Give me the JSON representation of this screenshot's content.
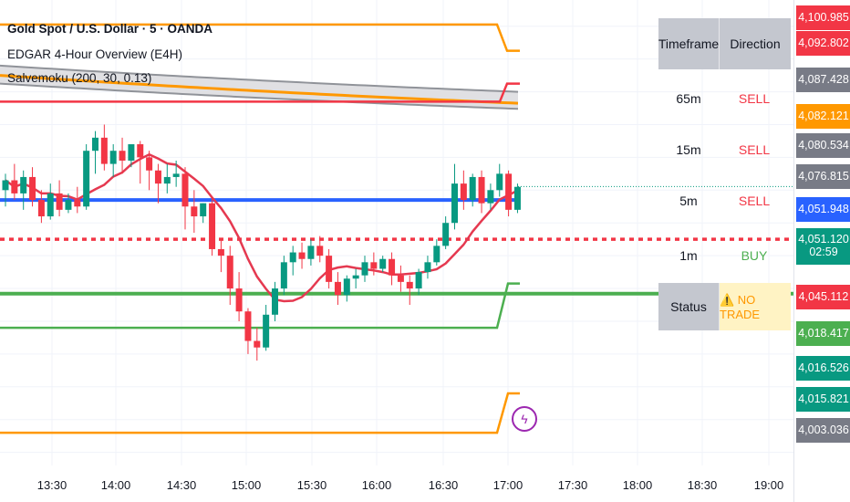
{
  "legend": {
    "title": "Gold Spot / U.S. Dollar · 5 · OANDA",
    "indicator1": "EDGAR 4-Hour Overview (E4H)",
    "indicator2": "Salvemoku  (200, 30, 0.13)"
  },
  "table": {
    "header_timeframe": "Timeframe",
    "header_direction": "Direction",
    "rows": [
      {
        "tf": "65m",
        "dir": "SELL",
        "color": "#f23645"
      },
      {
        "tf": "15m",
        "dir": "SELL",
        "color": "#f23645"
      },
      {
        "tf": "5m",
        "dir": "SELL",
        "color": "#f23645"
      },
      {
        "tf": "1m",
        "dir": "BUY",
        "color": "#4caf50"
      }
    ],
    "status_label": "Status",
    "status_value": "⚠️ NO TRADE"
  },
  "price_scale": [
    {
      "label": "4,100.985",
      "color": "#f23645"
    },
    {
      "label": "4,092.802",
      "color": "#f23645"
    },
    {
      "label": "4,087.428",
      "color": "#787b86"
    },
    {
      "label": "4,082.121",
      "color": "#ff9800"
    },
    {
      "label": "4,080.534",
      "color": "#787b86"
    },
    {
      "label": "4,076.815",
      "color": "#787b86"
    },
    {
      "label": "4,051.948",
      "color": "#2962ff"
    },
    {
      "label": "4,051.120",
      "sub": "02:59",
      "color": "#089981"
    },
    {
      "label": "4,045.112",
      "color": "#f23645"
    },
    {
      "label": "4,018.417",
      "color": "#4caf50"
    },
    {
      "label": "4,016.526",
      "color": "#089981"
    },
    {
      "label": "4,015.821",
      "color": "#089981"
    },
    {
      "label": "4,003.036",
      "color": "#787b86"
    }
  ],
  "time_axis": [
    "13:30",
    "14:00",
    "14:30",
    "15:00",
    "15:30",
    "16:00",
    "16:30",
    "17:00",
    "17:30",
    "18:00",
    "18:30",
    "19:00"
  ],
  "chart_data": {
    "type": "candlestick",
    "symbol": "Gold Spot / U.S. Dollar",
    "interval": "5",
    "last_price": 4051.12,
    "candles": [
      {
        "o": 4050,
        "h": 4055,
        "c": 4053,
        "l": 4045
      },
      {
        "o": 4053,
        "h": 4058,
        "c": 4049,
        "l": 4047
      },
      {
        "o": 4049,
        "h": 4056,
        "c": 4054,
        "l": 4044
      },
      {
        "o": 4054,
        "h": 4057,
        "c": 4047,
        "l": 4045
      },
      {
        "o": 4047,
        "h": 4050,
        "c": 4042,
        "l": 4040
      },
      {
        "o": 4042,
        "h": 4052,
        "c": 4049,
        "l": 4041
      },
      {
        "o": 4049,
        "h": 4053,
        "c": 4044,
        "l": 4042
      },
      {
        "o": 4044,
        "h": 4049,
        "c": 4047,
        "l": 4043
      },
      {
        "o": 4047,
        "h": 4051,
        "c": 4045,
        "l": 4043
      },
      {
        "o": 4045,
        "h": 4064,
        "c": 4062,
        "l": 4044
      },
      {
        "o": 4062,
        "h": 4068,
        "c": 4066,
        "l": 4055
      },
      {
        "o": 4066,
        "h": 4070,
        "c": 4058,
        "l": 4056
      },
      {
        "o": 4058,
        "h": 4064,
        "c": 4062,
        "l": 4054
      },
      {
        "o": 4062,
        "h": 4066,
        "c": 4059,
        "l": 4055
      },
      {
        "o": 4059,
        "h": 4063,
        "c": 4064,
        "l": 4057
      },
      {
        "o": 4064,
        "h": 4065,
        "c": 4060,
        "l": 4052
      },
      {
        "o": 4060,
        "h": 4062,
        "c": 4056,
        "l": 4050
      },
      {
        "o": 4056,
        "h": 4058,
        "c": 4052,
        "l": 4046
      },
      {
        "o": 4052,
        "h": 4058,
        "c": 4054,
        "l": 4049
      },
      {
        "o": 4054,
        "h": 4059,
        "c": 4055,
        "l": 4051
      },
      {
        "o": 4055,
        "h": 4057,
        "c": 4045,
        "l": 4038
      },
      {
        "o": 4045,
        "h": 4050,
        "c": 4042,
        "l": 4037
      },
      {
        "o": 4042,
        "h": 4046,
        "c": 4046,
        "l": 4040
      },
      {
        "o": 4046,
        "h": 4048,
        "c": 4032,
        "l": 4030
      },
      {
        "o": 4032,
        "h": 4035,
        "c": 4030,
        "l": 4025
      },
      {
        "o": 4030,
        "h": 4033,
        "c": 4020,
        "l": 4015
      },
      {
        "o": 4020,
        "h": 4025,
        "c": 4013,
        "l": 4010
      },
      {
        "o": 4013,
        "h": 4014,
        "c": 4004,
        "l": 4000
      },
      {
        "o": 4004,
        "h": 4008,
        "c": 4002,
        "l": 3998
      },
      {
        "o": 4002,
        "h": 4015,
        "c": 4012,
        "l": 4001
      },
      {
        "o": 4012,
        "h": 4022,
        "c": 4020,
        "l": 4010
      },
      {
        "o": 4020,
        "h": 4030,
        "c": 4028,
        "l": 4018
      },
      {
        "o": 4028,
        "h": 4033,
        "c": 4031,
        "l": 4024
      },
      {
        "o": 4031,
        "h": 4034,
        "c": 4029,
        "l": 4026
      },
      {
        "o": 4029,
        "h": 4035,
        "c": 4033,
        "l": 4027
      },
      {
        "o": 4033,
        "h": 4036,
        "c": 4030,
        "l": 4028
      },
      {
        "o": 4030,
        "h": 4032,
        "c": 4022,
        "l": 4020
      },
      {
        "o": 4022,
        "h": 4025,
        "c": 4018,
        "l": 4015
      },
      {
        "o": 4018,
        "h": 4024,
        "c": 4023,
        "l": 4016
      },
      {
        "o": 4023,
        "h": 4026,
        "c": 4024,
        "l": 4020
      },
      {
        "o": 4024,
        "h": 4030,
        "c": 4028,
        "l": 4022
      },
      {
        "o": 4028,
        "h": 4031,
        "c": 4026,
        "l": 4024
      },
      {
        "o": 4026,
        "h": 4030,
        "c": 4029,
        "l": 4025
      },
      {
        "o": 4029,
        "h": 4031,
        "c": 4024,
        "l": 4021
      },
      {
        "o": 4024,
        "h": 4027,
        "c": 4022,
        "l": 4019
      },
      {
        "o": 4022,
        "h": 4024,
        "c": 4020,
        "l": 4015
      },
      {
        "o": 4020,
        "h": 4026,
        "c": 4025,
        "l": 4018
      },
      {
        "o": 4025,
        "h": 4030,
        "c": 4028,
        "l": 4023
      },
      {
        "o": 4028,
        "h": 4035,
        "c": 4033,
        "l": 4027
      },
      {
        "o": 4033,
        "h": 4042,
        "c": 4040,
        "l": 4032
      },
      {
        "o": 4040,
        "h": 4058,
        "c": 4052,
        "l": 4038
      },
      {
        "o": 4052,
        "h": 4056,
        "c": 4047,
        "l": 4044
      },
      {
        "o": 4047,
        "h": 4055,
        "c": 4054,
        "l": 4045
      },
      {
        "o": 4054,
        "h": 4056,
        "c": 4046,
        "l": 4043
      },
      {
        "o": 4046,
        "h": 4052,
        "c": 4050,
        "l": 4044
      },
      {
        "o": 4050,
        "h": 4058,
        "c": 4055,
        "l": 4048
      },
      {
        "o": 4055,
        "h": 4056,
        "c": 4044,
        "l": 4042
      },
      {
        "o": 4044,
        "h": 4052,
        "c": 4051,
        "l": 4043
      }
    ],
    "levels": [
      {
        "name": "orange-top",
        "price": 4100.5,
        "color": "#ff9800"
      },
      {
        "name": "red-upper",
        "price": 4077,
        "color": "#f23645"
      },
      {
        "name": "blue",
        "price": 4047,
        "color": "#2962ff"
      },
      {
        "name": "red-dotted",
        "price": 4035,
        "color": "#f23645",
        "style": "dotted"
      },
      {
        "name": "green",
        "price": 4018.4,
        "color": "#4caf50"
      },
      {
        "name": "green-lower",
        "price": 4008,
        "color": "#4caf50"
      },
      {
        "name": "orange-bottom",
        "price": 3976,
        "color": "#ff9800"
      }
    ],
    "ylim": [
      3966,
      4108
    ]
  }
}
